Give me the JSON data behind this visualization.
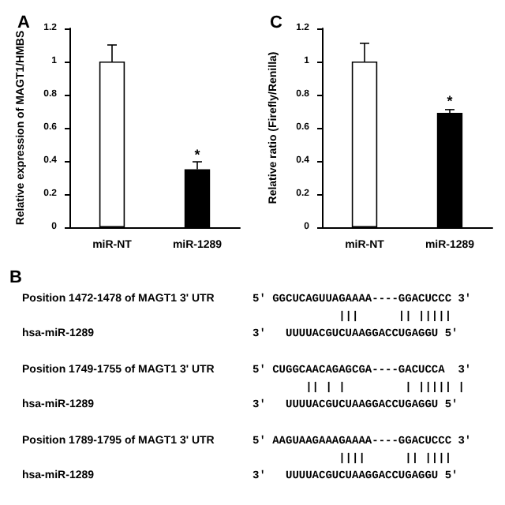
{
  "chart_data": [
    {
      "type": "bar",
      "title": "A",
      "ylabel": "Relative expression of MAGT1/HMBS",
      "categories": [
        "miR-NT",
        "miR-1289"
      ],
      "values": [
        1.0,
        0.35
      ],
      "colors": [
        "#ffffff",
        "#000000"
      ],
      "errors": [
        [
          1.0,
          1.1
        ],
        [
          0.35,
          0.395
        ]
      ],
      "ylim": [
        0,
        1.2
      ],
      "yticks": [
        0,
        0.2,
        0.4,
        0.6,
        0.8,
        1,
        1.2
      ],
      "grid": false,
      "annotations": [
        {
          "text": "*",
          "x": "miR-1289",
          "y": 0.44
        }
      ]
    },
    {
      "type": "bar",
      "title": "C",
      "ylabel": "Relative ratio (Firefly/Renilla)",
      "categories": [
        "miR-NT",
        "miR-1289"
      ],
      "values": [
        1.0,
        0.69
      ],
      "colors": [
        "#ffffff",
        "#000000"
      ],
      "errors": [
        [
          1.0,
          1.11
        ],
        [
          0.69,
          0.71
        ]
      ],
      "ylim": [
        0,
        1.2
      ],
      "yticks": [
        0,
        0.2,
        0.4,
        0.6,
        0.8,
        1,
        1.2
      ],
      "grid": false,
      "annotations": [
        {
          "text": "*",
          "x": "miR-1289",
          "y": 0.76
        }
      ]
    },
    {
      "type": "other",
      "title": "B",
      "annotations": [
        "Position 1472-1478 of MAGT1 3' UTR",
        "5' GGCUCAGUUAGAAAA----GGACUCCC 3'",
        "             |||      || |||||",
        "hsa-miR-1289",
        "3'   UUUUACGUCUAAGGACCUGAGGU 5'",
        "Position 1749-1755 of MAGT1 3' UTR",
        "5' CUGGCAACAGAGCGA----GACUCCA  3'",
        "        || | |         | ||||| |",
        "hsa-miR-1289",
        "3'   UUUUACGUCUAAGGACCUGAGGU 5'",
        "Position 1789-1795 of MAGT1 3' UTR",
        "5' AAGUAAGAAAGAAAA----GGACUCCC 3'",
        "             ||||      || ||||",
        "hsa-miR-1289",
        "3'   UUUUACGUCUAAGGACCUGAGGU 5'"
      ]
    }
  ]
}
